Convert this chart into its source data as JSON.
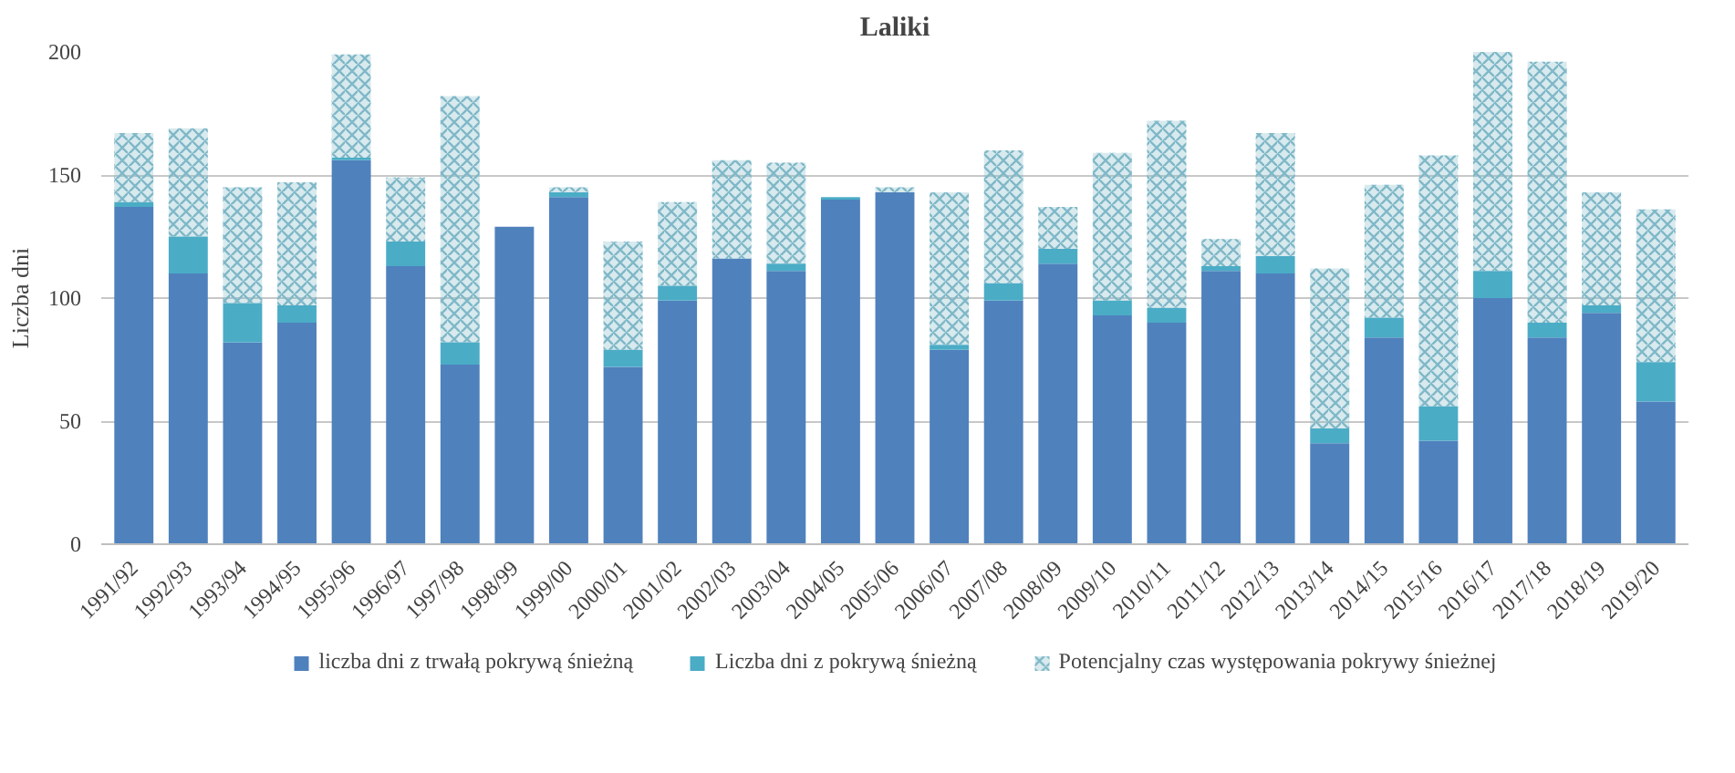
{
  "chart_data": {
    "type": "bar",
    "title": "Laliki",
    "ylabel": "Liczba dni",
    "categories": [
      "1991/92",
      "1992/93",
      "1993/94",
      "1994/95",
      "1995/96",
      "1996/97",
      "1997/98",
      "1998/99",
      "1999/00",
      "2000/01",
      "2001/02",
      "2002/03",
      "2003/04",
      "2004/05",
      "2005/06",
      "2006/07",
      "2007/08",
      "2008/09",
      "2009/10",
      "2010/11",
      "2011/12",
      "2012/13",
      "2013/14",
      "2014/15",
      "2015/16",
      "2016/17",
      "2017/18",
      "2018/19",
      "2019/20"
    ],
    "stacked": true,
    "series": [
      {
        "name": "liczba dni z trwałą pokrywą śnieżną",
        "color": "#4f81bd",
        "values": [
          137,
          110,
          82,
          90,
          156,
          113,
          73,
          129,
          141,
          72,
          99,
          116,
          111,
          140,
          143,
          79,
          99,
          114,
          93,
          90,
          111,
          110,
          41,
          84,
          42,
          100,
          84,
          94,
          58
        ]
      },
      {
        "name": "Liczba dni z pokrywą śnieżną",
        "color": "#4bacc6",
        "values": [
          2,
          15,
          16,
          7,
          1,
          10,
          9,
          0,
          2,
          7,
          6,
          0,
          3,
          1,
          0,
          2,
          7,
          6,
          6,
          6,
          2,
          7,
          6,
          8,
          14,
          11,
          6,
          3,
          16
        ]
      },
      {
        "name": "Potencjalny czas występowania pokrywy śnieżnej",
        "color": "#7fb8c8",
        "values": [
          28,
          44,
          47,
          50,
          42,
          26,
          100,
          0,
          2,
          44,
          34,
          40,
          41,
          0,
          2,
          62,
          54,
          17,
          60,
          76,
          11,
          50,
          65,
          54,
          102,
          89,
          106,
          46,
          62
        ]
      }
    ],
    "ylim": [
      0,
      200
    ],
    "yticks": [
      0,
      50,
      100,
      150,
      200
    ],
    "grid": "y",
    "legend": "bottom"
  }
}
